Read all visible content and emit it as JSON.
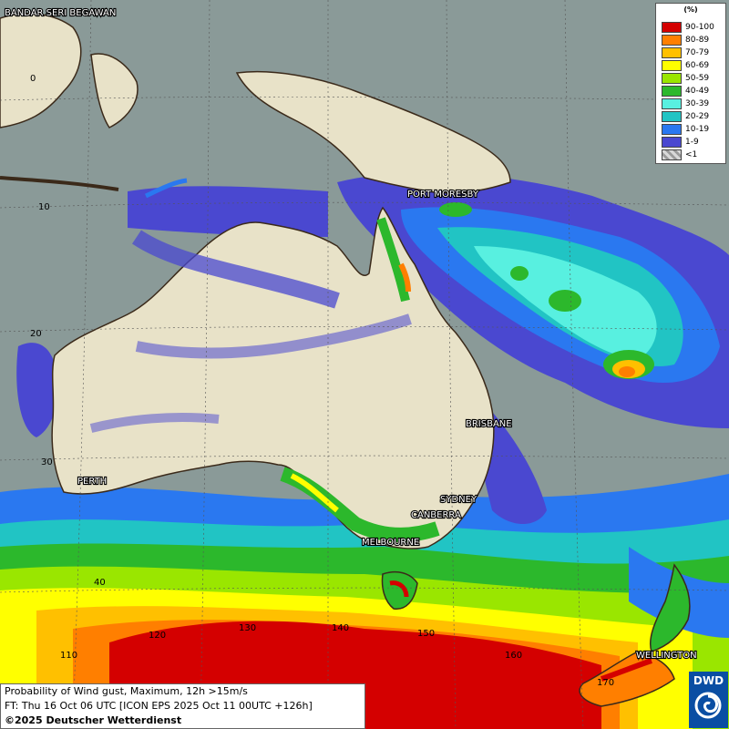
{
  "legend": {
    "unit": "(%)",
    "classes": [
      {
        "label": "90-100",
        "color": "#d40000"
      },
      {
        "label": "80-89",
        "color": "#ff7f00"
      },
      {
        "label": "70-79",
        "color": "#ffc000"
      },
      {
        "label": "60-69",
        "color": "#ffff00"
      },
      {
        "label": "50-59",
        "color": "#9ae600"
      },
      {
        "label": "40-49",
        "color": "#2cb82c"
      },
      {
        "label": "30-39",
        "color": "#58f0e0"
      },
      {
        "label": "20-29",
        "color": "#21c4c4"
      },
      {
        "label": "10-19",
        "color": "#2a78f0"
      },
      {
        "label": "1-9",
        "color": "#4a48d0"
      },
      {
        "label": "<1",
        "color": "#bcbcbc"
      }
    ]
  },
  "cities": [
    {
      "name": "BANDAR SERI BEGAWAN"
    },
    {
      "name": "PORT MORESBY"
    },
    {
      "name": "BRISBANE"
    },
    {
      "name": "PERTH"
    },
    {
      "name": "SYDNEY"
    },
    {
      "name": "CANBERRA"
    },
    {
      "name": "MELBOURNE"
    },
    {
      "name": "WELLINGTON"
    }
  ],
  "grid_labels": {
    "latitudes": [
      "0",
      "10",
      "20",
      "30",
      "40"
    ],
    "longitudes": [
      "110",
      "120",
      "130",
      "140",
      "150",
      "160",
      "170"
    ]
  },
  "info": {
    "line1": "Probability of Wind gust, Maximum, 12h >15m/s",
    "line2": "FT: Thu 16 Oct 06 UTC [ICON EPS 2025 Oct 11 00UTC +126h]",
    "line3": "©2025 Deutscher Wetterdienst"
  },
  "logo": {
    "text": "DWD"
  }
}
